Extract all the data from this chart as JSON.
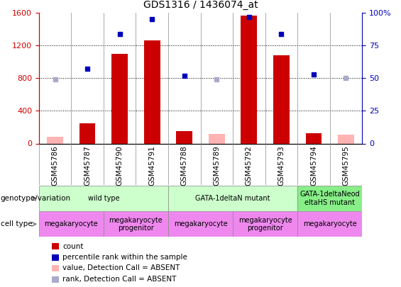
{
  "title": "GDS1316 / 1436074_at",
  "samples": [
    "GSM45786",
    "GSM45787",
    "GSM45790",
    "GSM45791",
    "GSM45788",
    "GSM45789",
    "GSM45792",
    "GSM45793",
    "GSM45794",
    "GSM45795"
  ],
  "count_values": [
    null,
    250,
    1100,
    1260,
    155,
    null,
    1570,
    1080,
    130,
    null
  ],
  "count_absent": [
    80,
    null,
    null,
    null,
    null,
    115,
    null,
    null,
    null,
    105
  ],
  "rank_absent_idx": [
    0,
    5,
    9
  ],
  "rank_absent_vals": [
    49,
    49,
    50
  ],
  "percentile_present": {
    "1": 57,
    "2": 84,
    "3": 95,
    "4": 52,
    "6": 97,
    "7": 84,
    "8": 53
  },
  "ylim_left": [
    0,
    1600
  ],
  "ylim_right": [
    0,
    100
  ],
  "yticks_left": [
    0,
    400,
    800,
    1200,
    1600
  ],
  "yticks_right": [
    0,
    25,
    50,
    75,
    100
  ],
  "bar_color": "#cc0000",
  "bar_absent_color": "#ffb3b3",
  "dot_color": "#0000bb",
  "dot_absent_color": "#aaaacc",
  "grid_lines": [
    400,
    800,
    1200
  ],
  "genotype_groups": [
    {
      "label": "wild type",
      "start": 0,
      "end": 4,
      "color": "#ccffcc"
    },
    {
      "label": "GATA-1deltaN mutant",
      "start": 4,
      "end": 8,
      "color": "#ccffcc"
    },
    {
      "label": "GATA-1deltaNeod\neltaHS mutant",
      "start": 8,
      "end": 10,
      "color": "#88ee88"
    }
  ],
  "cell_type_groups": [
    {
      "label": "megakaryocyte",
      "start": 0,
      "end": 2,
      "color": "#ee88ee"
    },
    {
      "label": "megakaryocyte\nprogenitor",
      "start": 2,
      "end": 4,
      "color": "#ee88ee"
    },
    {
      "label": "megakaryocyte",
      "start": 4,
      "end": 6,
      "color": "#ee88ee"
    },
    {
      "label": "megakaryocyte\nprogenitor",
      "start": 6,
      "end": 8,
      "color": "#ee88ee"
    },
    {
      "label": "megakaryocyte",
      "start": 8,
      "end": 10,
      "color": "#ee88ee"
    }
  ],
  "legend_items": [
    {
      "label": "count",
      "color": "#cc0000"
    },
    {
      "label": "percentile rank within the sample",
      "color": "#0000bb"
    },
    {
      "label": "value, Detection Call = ABSENT",
      "color": "#ffb3b3"
    },
    {
      "label": "rank, Detection Call = ABSENT",
      "color": "#aaaacc"
    }
  ],
  "label_left": "genotype/variation",
  "label_right": "cell type"
}
